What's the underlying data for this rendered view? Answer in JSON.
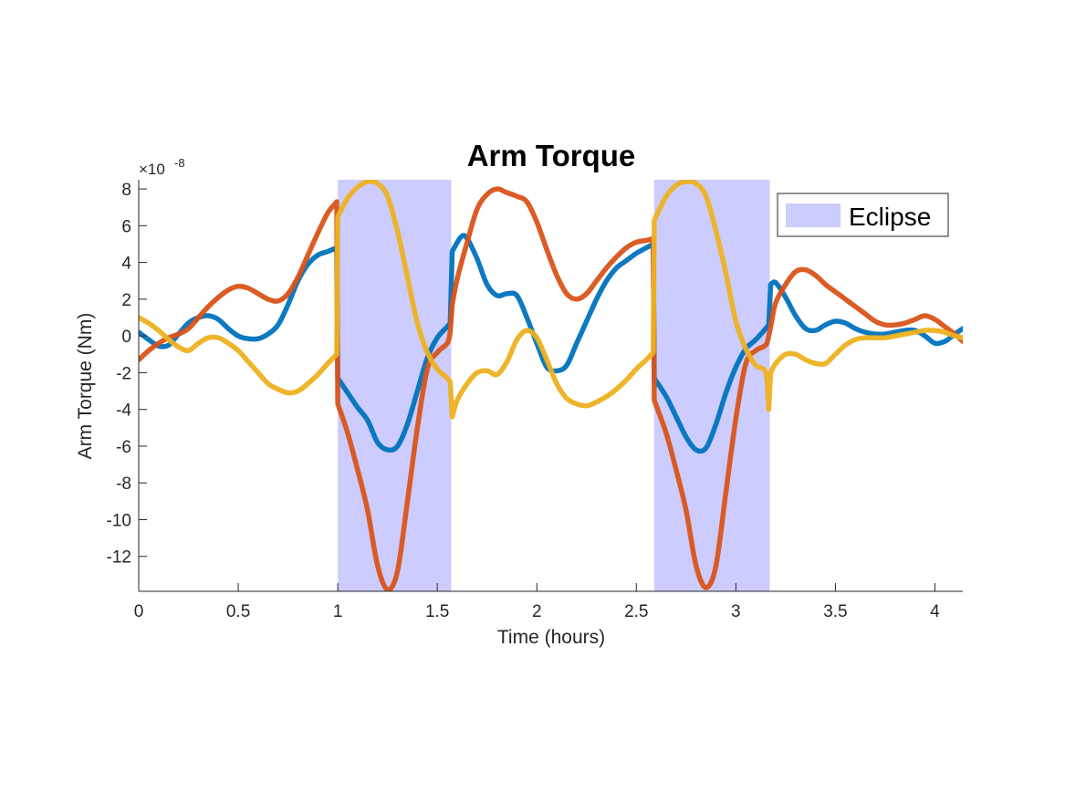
{
  "chart_data": {
    "type": "line",
    "title": "Arm Torque",
    "xlabel": "Time (hours)",
    "ylabel": "Arm Torque (Nm)",
    "y_exponent_label": "×10",
    "y_exponent_power": "-8",
    "xlim": [
      0,
      4.14
    ],
    "ylim": [
      -13.9,
      8.5
    ],
    "grid": false,
    "legend_position": "top-right",
    "x_ticks": [
      0,
      0.5,
      1,
      1.5,
      2,
      2.5,
      3,
      3.5,
      4
    ],
    "x_tick_labels": [
      "0",
      "0.5",
      "1",
      "1.5",
      "2",
      "2.5",
      "3",
      "3.5",
      "4"
    ],
    "y_ticks": [
      8,
      6,
      4,
      2,
      0,
      -2,
      -4,
      -6,
      -8,
      -10,
      -12
    ],
    "y_tick_labels": [
      "8",
      "6",
      "4",
      "2",
      "0",
      "-2",
      "-4",
      "-6",
      "-8",
      "-10",
      "-12"
    ],
    "eclipse": {
      "name": "Eclipse",
      "color": "#ccccff",
      "intervals": [
        [
          1.0,
          1.57
        ],
        [
          2.59,
          3.17
        ]
      ]
    },
    "series": [
      {
        "color": "#0072bd",
        "points": [
          [
            0,
            0.2
          ],
          [
            0.05,
            -0.2
          ],
          [
            0.1,
            -0.55
          ],
          [
            0.15,
            -0.5
          ],
          [
            0.2,
            0.1
          ],
          [
            0.25,
            0.7
          ],
          [
            0.3,
            1.0
          ],
          [
            0.35,
            1.1
          ],
          [
            0.4,
            0.9
          ],
          [
            0.45,
            0.4
          ],
          [
            0.5,
            0.0
          ],
          [
            0.55,
            -0.15
          ],
          [
            0.6,
            -0.15
          ],
          [
            0.65,
            0.1
          ],
          [
            0.7,
            0.6
          ],
          [
            0.75,
            1.7
          ],
          [
            0.8,
            3.0
          ],
          [
            0.85,
            3.9
          ],
          [
            0.9,
            4.4
          ],
          [
            0.95,
            4.6
          ],
          [
            0.995,
            4.8
          ],
          [
            1.0,
            -2.3
          ],
          [
            1.05,
            -3.1
          ],
          [
            1.1,
            -3.9
          ],
          [
            1.15,
            -4.6
          ],
          [
            1.2,
            -5.8
          ],
          [
            1.25,
            -6.2
          ],
          [
            1.3,
            -6.0
          ],
          [
            1.35,
            -4.8
          ],
          [
            1.4,
            -3.0
          ],
          [
            1.45,
            -1.2
          ],
          [
            1.5,
            -0.1
          ],
          [
            1.55,
            0.5
          ],
          [
            1.565,
            0.7
          ],
          [
            1.575,
            4.6
          ],
          [
            1.62,
            5.4
          ],
          [
            1.65,
            5.3
          ],
          [
            1.7,
            4.2
          ],
          [
            1.75,
            2.8
          ],
          [
            1.8,
            2.2
          ],
          [
            1.85,
            2.3
          ],
          [
            1.9,
            2.2
          ],
          [
            1.95,
            1.0
          ],
          [
            2.0,
            -0.4
          ],
          [
            2.05,
            -1.7
          ],
          [
            2.1,
            -1.9
          ],
          [
            2.15,
            -1.6
          ],
          [
            2.2,
            -0.4
          ],
          [
            2.25,
            0.8
          ],
          [
            2.3,
            2.0
          ],
          [
            2.35,
            3.0
          ],
          [
            2.4,
            3.7
          ],
          [
            2.45,
            4.1
          ],
          [
            2.5,
            4.5
          ],
          [
            2.55,
            4.8
          ],
          [
            2.585,
            5.0
          ],
          [
            2.59,
            -2.3
          ],
          [
            2.65,
            -3.3
          ],
          [
            2.7,
            -4.4
          ],
          [
            2.75,
            -5.5
          ],
          [
            2.8,
            -6.2
          ],
          [
            2.85,
            -6.1
          ],
          [
            2.9,
            -4.8
          ],
          [
            2.95,
            -3.1
          ],
          [
            3.0,
            -1.7
          ],
          [
            3.05,
            -0.7
          ],
          [
            3.1,
            -0.2
          ],
          [
            3.15,
            0.4
          ],
          [
            3.165,
            0.6
          ],
          [
            3.175,
            2.8
          ],
          [
            3.2,
            2.9
          ],
          [
            3.25,
            2.1
          ],
          [
            3.3,
            1.1
          ],
          [
            3.35,
            0.4
          ],
          [
            3.4,
            0.3
          ],
          [
            3.45,
            0.6
          ],
          [
            3.5,
            0.8
          ],
          [
            3.55,
            0.7
          ],
          [
            3.6,
            0.4
          ],
          [
            3.65,
            0.2
          ],
          [
            3.7,
            0.1
          ],
          [
            3.75,
            0.1
          ],
          [
            3.8,
            0.2
          ],
          [
            3.85,
            0.3
          ],
          [
            3.9,
            0.3
          ],
          [
            3.95,
            0.0
          ],
          [
            4.0,
            -0.4
          ],
          [
            4.05,
            -0.3
          ],
          [
            4.1,
            0.1
          ],
          [
            4.14,
            0.4
          ]
        ]
      },
      {
        "color": "#d95319",
        "points": [
          [
            0,
            -1.3
          ],
          [
            0.05,
            -0.8
          ],
          [
            0.1,
            -0.4
          ],
          [
            0.15,
            -0.1
          ],
          [
            0.2,
            0.1
          ],
          [
            0.25,
            0.4
          ],
          [
            0.3,
            1.0
          ],
          [
            0.35,
            1.6
          ],
          [
            0.4,
            2.1
          ],
          [
            0.45,
            2.5
          ],
          [
            0.5,
            2.7
          ],
          [
            0.55,
            2.6
          ],
          [
            0.6,
            2.3
          ],
          [
            0.65,
            2.0
          ],
          [
            0.7,
            1.9
          ],
          [
            0.75,
            2.3
          ],
          [
            0.8,
            3.2
          ],
          [
            0.85,
            4.4
          ],
          [
            0.9,
            5.6
          ],
          [
            0.95,
            6.7
          ],
          [
            0.995,
            7.3
          ],
          [
            1.0,
            -3.7
          ],
          [
            1.05,
            -5.3
          ],
          [
            1.1,
            -7.3
          ],
          [
            1.15,
            -9.5
          ],
          [
            1.2,
            -12.5
          ],
          [
            1.25,
            -13.8
          ],
          [
            1.3,
            -12.8
          ],
          [
            1.35,
            -9.0
          ],
          [
            1.4,
            -5.0
          ],
          [
            1.45,
            -1.8
          ],
          [
            1.5,
            -0.9
          ],
          [
            1.55,
            -0.4
          ],
          [
            1.565,
            0.2
          ],
          [
            1.575,
            1.7
          ],
          [
            1.6,
            3.1
          ],
          [
            1.65,
            5.1
          ],
          [
            1.7,
            6.9
          ],
          [
            1.75,
            7.7
          ],
          [
            1.8,
            8.0
          ],
          [
            1.85,
            7.8
          ],
          [
            1.9,
            7.6
          ],
          [
            1.95,
            7.3
          ],
          [
            2.0,
            6.2
          ],
          [
            2.05,
            4.7
          ],
          [
            2.1,
            3.3
          ],
          [
            2.15,
            2.3
          ],
          [
            2.2,
            2.0
          ],
          [
            2.25,
            2.3
          ],
          [
            2.3,
            3.0
          ],
          [
            2.35,
            3.7
          ],
          [
            2.4,
            4.3
          ],
          [
            2.45,
            4.8
          ],
          [
            2.5,
            5.1
          ],
          [
            2.55,
            5.2
          ],
          [
            2.585,
            5.3
          ],
          [
            2.59,
            -3.5
          ],
          [
            2.65,
            -5.3
          ],
          [
            2.7,
            -7.3
          ],
          [
            2.75,
            -9.5
          ],
          [
            2.8,
            -12.5
          ],
          [
            2.85,
            -13.7
          ],
          [
            2.9,
            -12.5
          ],
          [
            2.95,
            -8.5
          ],
          [
            3.0,
            -4.5
          ],
          [
            3.05,
            -1.5
          ],
          [
            3.1,
            -0.8
          ],
          [
            3.15,
            -0.5
          ],
          [
            3.165,
            0.0
          ],
          [
            3.175,
            0.5
          ],
          [
            3.2,
            1.8
          ],
          [
            3.25,
            2.8
          ],
          [
            3.3,
            3.5
          ],
          [
            3.35,
            3.6
          ],
          [
            3.4,
            3.3
          ],
          [
            3.45,
            2.8
          ],
          [
            3.5,
            2.4
          ],
          [
            3.55,
            2.0
          ],
          [
            3.6,
            1.6
          ],
          [
            3.65,
            1.2
          ],
          [
            3.7,
            0.8
          ],
          [
            3.75,
            0.6
          ],
          [
            3.8,
            0.6
          ],
          [
            3.85,
            0.7
          ],
          [
            3.9,
            0.9
          ],
          [
            3.95,
            1.1
          ],
          [
            4.0,
            0.9
          ],
          [
            4.05,
            0.5
          ],
          [
            4.1,
            0.1
          ],
          [
            4.14,
            -0.3
          ]
        ]
      },
      {
        "color": "#edb120",
        "points": [
          [
            0,
            1.0
          ],
          [
            0.05,
            0.7
          ],
          [
            0.1,
            0.3
          ],
          [
            0.15,
            -0.2
          ],
          [
            0.2,
            -0.6
          ],
          [
            0.25,
            -0.8
          ],
          [
            0.3,
            -0.4
          ],
          [
            0.35,
            -0.1
          ],
          [
            0.4,
            -0.1
          ],
          [
            0.45,
            -0.4
          ],
          [
            0.5,
            -0.8
          ],
          [
            0.55,
            -1.4
          ],
          [
            0.6,
            -2.0
          ],
          [
            0.65,
            -2.6
          ],
          [
            0.7,
            -2.9
          ],
          [
            0.75,
            -3.1
          ],
          [
            0.8,
            -3.0
          ],
          [
            0.85,
            -2.6
          ],
          [
            0.9,
            -2.1
          ],
          [
            0.95,
            -1.5
          ],
          [
            0.995,
            -1.0
          ],
          [
            1.0,
            6.5
          ],
          [
            1.05,
            7.5
          ],
          [
            1.1,
            8.1
          ],
          [
            1.15,
            8.4
          ],
          [
            1.2,
            8.3
          ],
          [
            1.25,
            7.6
          ],
          [
            1.3,
            5.7
          ],
          [
            1.35,
            3.2
          ],
          [
            1.4,
            0.7
          ],
          [
            1.45,
            -0.9
          ],
          [
            1.5,
            -1.8
          ],
          [
            1.55,
            -2.3
          ],
          [
            1.565,
            -2.5
          ],
          [
            1.575,
            -4.4
          ],
          [
            1.6,
            -3.5
          ],
          [
            1.65,
            -2.6
          ],
          [
            1.7,
            -2.0
          ],
          [
            1.75,
            -1.9
          ],
          [
            1.8,
            -2.1
          ],
          [
            1.85,
            -1.4
          ],
          [
            1.9,
            -0.2
          ],
          [
            1.95,
            0.3
          ],
          [
            2.0,
            -0.1
          ],
          [
            2.05,
            -1.3
          ],
          [
            2.1,
            -2.6
          ],
          [
            2.15,
            -3.4
          ],
          [
            2.2,
            -3.7
          ],
          [
            2.25,
            -3.8
          ],
          [
            2.3,
            -3.6
          ],
          [
            2.35,
            -3.3
          ],
          [
            2.4,
            -2.9
          ],
          [
            2.45,
            -2.4
          ],
          [
            2.5,
            -1.8
          ],
          [
            2.55,
            -1.3
          ],
          [
            2.585,
            -0.9
          ],
          [
            2.59,
            6.3
          ],
          [
            2.65,
            7.6
          ],
          [
            2.7,
            8.2
          ],
          [
            2.75,
            8.4
          ],
          [
            2.8,
            8.3
          ],
          [
            2.85,
            7.6
          ],
          [
            2.9,
            5.7
          ],
          [
            2.95,
            3.4
          ],
          [
            3.0,
            0.8
          ],
          [
            3.05,
            -0.7
          ],
          [
            3.1,
            -1.6
          ],
          [
            3.15,
            -2.0
          ],
          [
            3.165,
            -4.0
          ],
          [
            3.175,
            -2.0
          ],
          [
            3.2,
            -1.5
          ],
          [
            3.25,
            -1.0
          ],
          [
            3.3,
            -1.0
          ],
          [
            3.35,
            -1.3
          ],
          [
            3.4,
            -1.5
          ],
          [
            3.45,
            -1.5
          ],
          [
            3.5,
            -1.0
          ],
          [
            3.55,
            -0.5
          ],
          [
            3.6,
            -0.2
          ],
          [
            3.65,
            -0.1
          ],
          [
            3.7,
            -0.1
          ],
          [
            3.75,
            -0.1
          ],
          [
            3.8,
            0.0
          ],
          [
            3.85,
            0.1
          ],
          [
            3.9,
            0.2
          ],
          [
            3.95,
            0.3
          ],
          [
            4.0,
            0.3
          ],
          [
            4.05,
            0.2
          ],
          [
            4.1,
            0.0
          ],
          [
            4.14,
            -0.1
          ]
        ]
      }
    ]
  }
}
